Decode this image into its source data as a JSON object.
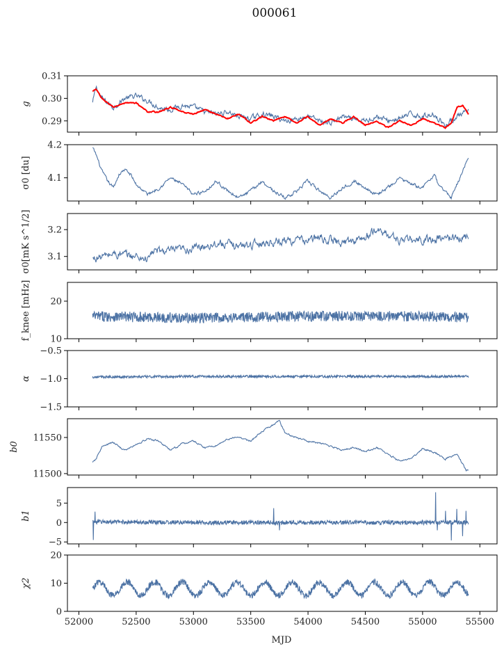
{
  "figure": {
    "title": "000061",
    "xlabel": "MJD"
  },
  "colors": {
    "series": "#4c72a4",
    "model": "#ff0000",
    "axes": "#000000"
  },
  "chart_data": {
    "type": "line",
    "shared_x": {
      "label": "MJD",
      "xlim": [
        51900,
        55650
      ],
      "ticks": [
        52000,
        52500,
        53000,
        53500,
        54000,
        54500,
        55000,
        55500
      ],
      "tick_labels": [
        "52000",
        "52500",
        "53000",
        "53500",
        "54000",
        "54500",
        "55000",
        "55500"
      ],
      "data_range": [
        52120,
        55400
      ]
    },
    "panels": [
      {
        "ylabel": "g",
        "ylim": [
          0.285,
          0.31
        ],
        "yticks": [
          0.29,
          0.3,
          0.31
        ],
        "ytick_labels": [
          "0.29",
          "0.30",
          "0.31"
        ],
        "series": [
          {
            "role": "data",
            "kind": "smooth",
            "color": "#4c72a4",
            "x": [
              52120,
              52150,
              52200,
              52300,
              52400,
              52500,
              52600,
              52700,
              52800,
              52900,
              53000,
              53100,
              53200,
              53300,
              53400,
              53500,
              53600,
              53700,
              53800,
              53900,
              54000,
              54100,
              54200,
              54300,
              54400,
              54500,
              54600,
              54700,
              54800,
              54900,
              55000,
              55100,
              55200,
              55300,
              55400
            ],
            "y": [
              0.298,
              0.305,
              0.3,
              0.296,
              0.3,
              0.301,
              0.299,
              0.296,
              0.295,
              0.297,
              0.296,
              0.294,
              0.293,
              0.294,
              0.292,
              0.291,
              0.293,
              0.292,
              0.29,
              0.291,
              0.292,
              0.29,
              0.289,
              0.292,
              0.29,
              0.29,
              0.292,
              0.29,
              0.291,
              0.293,
              0.292,
              0.293,
              0.288,
              0.292,
              0.294
            ],
            "noise": 0.0009
          },
          {
            "role": "model",
            "kind": "smooth",
            "color": "#ff0000",
            "x": [
              52120,
              52150,
              52200,
              52300,
              52400,
              52500,
              52600,
              52700,
              52800,
              52900,
              53000,
              53100,
              53200,
              53300,
              53400,
              53500,
              53600,
              53700,
              53800,
              53900,
              54000,
              54100,
              54200,
              54300,
              54400,
              54500,
              54600,
              54700,
              54800,
              54900,
              55000,
              55100,
              55200,
              55250,
              55300,
              55350,
              55400
            ],
            "y": [
              0.303,
              0.304,
              0.3,
              0.296,
              0.298,
              0.298,
              0.294,
              0.294,
              0.296,
              0.294,
              0.293,
              0.295,
              0.293,
              0.291,
              0.293,
              0.289,
              0.292,
              0.29,
              0.292,
              0.289,
              0.292,
              0.288,
              0.291,
              0.289,
              0.292,
              0.288,
              0.29,
              0.287,
              0.29,
              0.288,
              0.291,
              0.289,
              0.287,
              0.289,
              0.296,
              0.297,
              0.293
            ],
            "noise": 0.0002
          }
        ]
      },
      {
        "ylabel": "σ0 [du]",
        "ylim": [
          4.03,
          4.2
        ],
        "yticks": [
          4.1,
          4.2
        ],
        "ytick_labels": [
          "4.1",
          "4.2"
        ],
        "series": [
          {
            "role": "data",
            "kind": "smooth",
            "color": "#4c72a4",
            "x": [
              52120,
              52150,
              52200,
              52250,
              52300,
              52350,
              52400,
              52450,
              52500,
              52600,
              52700,
              52800,
              52900,
              53000,
              53100,
              53200,
              53300,
              53400,
              53500,
              53600,
              53700,
              53800,
              53900,
              54000,
              54100,
              54200,
              54300,
              54400,
              54500,
              54600,
              54700,
              54800,
              54900,
              55000,
              55100,
              55150,
              55200,
              55250,
              55300,
              55350,
              55400
            ],
            "y": [
              4.19,
              4.17,
              4.12,
              4.09,
              4.07,
              4.11,
              4.125,
              4.11,
              4.08,
              4.05,
              4.07,
              4.1,
              4.08,
              4.05,
              4.06,
              4.09,
              4.06,
              4.04,
              4.06,
              4.09,
              4.06,
              4.04,
              4.06,
              4.09,
              4.06,
              4.04,
              4.07,
              4.09,
              4.07,
              4.05,
              4.07,
              4.1,
              4.08,
              4.07,
              4.11,
              4.07,
              4.06,
              4.04,
              4.08,
              4.12,
              4.165
            ],
            "noise": 0.004
          }
        ]
      },
      {
        "ylabel": "σ0[mK s^1/2]",
        "ylim": [
          3.05,
          3.26
        ],
        "yticks": [
          3.1,
          3.2
        ],
        "ytick_labels": [
          "3.1",
          "3.2"
        ],
        "series": [
          {
            "role": "data",
            "kind": "smooth",
            "color": "#4c72a4",
            "x": [
              52120,
              52300,
              52500,
              52600,
              52650,
              52800,
              53000,
              53200,
              53400,
              53600,
              53800,
              54000,
              54100,
              54300,
              54500,
              54600,
              54800,
              55000,
              55200,
              55400
            ],
            "y": [
              3.09,
              3.11,
              3.1,
              3.09,
              3.12,
              3.12,
              3.13,
              3.15,
              3.14,
              3.15,
              3.16,
              3.16,
              3.17,
              3.15,
              3.17,
              3.2,
              3.16,
              3.16,
              3.17,
              3.17
            ],
            "noise": 0.012
          }
        ]
      },
      {
        "ylabel": "f_knee [mHz]",
        "ylim": [
          10,
          25
        ],
        "yticks": [
          10,
          20
        ],
        "ytick_labels": [
          "10",
          "20"
        ],
        "series": [
          {
            "role": "data",
            "kind": "noise",
            "color": "#4c72a4",
            "x": [
              52120,
              53000,
              54000,
              55000,
              55400
            ],
            "y": [
              16.0,
              15.5,
              16.0,
              16.0,
              15.5
            ],
            "noise": 1.4
          }
        ]
      },
      {
        "ylabel": "α",
        "ylim": [
          -1.5,
          -0.5
        ],
        "yticks": [
          -1.5,
          -1.0,
          -0.5
        ],
        "ytick_labels": [
          "−1.5",
          "−1.0",
          "−0.5"
        ],
        "series": [
          {
            "role": "data",
            "kind": "noise",
            "color": "#4c72a4",
            "x": [
              52120,
              53000,
              54000,
              55000,
              55400
            ],
            "y": [
              -0.97,
              -0.96,
              -0.96,
              -0.96,
              -0.96
            ],
            "noise": 0.022
          }
        ]
      },
      {
        "ylabel": "b0",
        "ylim": [
          11498,
          11576
        ],
        "yticks": [
          11500,
          11550
        ],
        "ytick_labels": [
          "11500",
          "11550"
        ],
        "series": [
          {
            "role": "data",
            "kind": "smooth",
            "color": "#4c72a4",
            "x": [
              52120,
              52150,
              52200,
              52300,
              52400,
              52500,
              52600,
              52700,
              52800,
              52900,
              53000,
              53100,
              53200,
              53300,
              53400,
              53500,
              53600,
              53700,
              53750,
              53800,
              53900,
              54000,
              54100,
              54200,
              54300,
              54400,
              54500,
              54600,
              54700,
              54800,
              54900,
              55000,
              55100,
              55200,
              55300,
              55380,
              55400
            ],
            "y": [
              11515,
              11520,
              11537,
              11543,
              11532,
              11540,
              11548,
              11545,
              11532,
              11541,
              11545,
              11536,
              11539,
              11548,
              11550,
              11545,
              11558,
              11568,
              11574,
              11556,
              11550,
              11545,
              11542,
              11538,
              11533,
              11536,
              11530,
              11536,
              11526,
              11518,
              11520,
              11535,
              11530,
              11520,
              11528,
              11505,
              11505
            ],
            "noise": 1.0
          }
        ]
      },
      {
        "ylabel": "b1",
        "ylim": [
          -5.5,
          9
        ],
        "yticks": [
          -5,
          0,
          5
        ],
        "ytick_labels": [
          "−5",
          "0",
          "5"
        ],
        "series": [
          {
            "role": "data",
            "kind": "noise",
            "color": "#4c72a4",
            "x": [
              52120,
              53000,
              54000,
              55000,
              55400
            ],
            "y": [
              0.2,
              0.0,
              0.0,
              0.0,
              0.0
            ],
            "noise": 0.55,
            "spikes": [
              [
                52125,
                -4.5
              ],
              [
                52140,
                2.8
              ],
              [
                53700,
                3.7
              ],
              [
                53750,
                -2.0
              ],
              [
                55115,
                7.8
              ],
              [
                55130,
                -2.0
              ],
              [
                55200,
                3.0
              ],
              [
                55250,
                -4.6
              ],
              [
                55300,
                3.5
              ],
              [
                55350,
                -3.5
              ],
              [
                55380,
                3.0
              ]
            ]
          }
        ]
      },
      {
        "ylabel": "χ2",
        "ylim": [
          0,
          20
        ],
        "yticks": [
          0,
          10,
          20
        ],
        "ytick_labels": [
          "0",
          "10",
          "20"
        ],
        "series": [
          {
            "role": "data",
            "kind": "seasonal",
            "color": "#4c72a4",
            "x": [
              52120,
              55400
            ],
            "y": [
              8,
              8
            ],
            "amplitude": 2.4,
            "period_days": 240,
            "noise": 1.1
          }
        ]
      }
    ]
  }
}
